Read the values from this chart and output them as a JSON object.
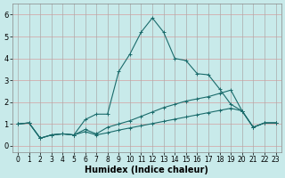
{
  "title": "",
  "xlabel": "Humidex (Indice chaleur)",
  "background_color": "#c8eaea",
  "grid_color_h": "#d4a0a0",
  "grid_color_v": "#aaaaaa",
  "line_color": "#1a6b6b",
  "xlim": [
    -0.5,
    23.5
  ],
  "ylim": [
    -0.3,
    6.5
  ],
  "xticks": [
    0,
    1,
    2,
    3,
    4,
    5,
    6,
    7,
    8,
    9,
    10,
    11,
    12,
    13,
    14,
    15,
    16,
    17,
    18,
    19,
    20,
    21,
    22,
    23
  ],
  "yticks": [
    0,
    1,
    2,
    3,
    4,
    5,
    6
  ],
  "series1": [
    [
      0,
      1.0
    ],
    [
      1,
      1.05
    ],
    [
      2,
      0.35
    ],
    [
      3,
      0.5
    ],
    [
      4,
      0.55
    ],
    [
      5,
      0.5
    ],
    [
      6,
      1.2
    ],
    [
      7,
      1.45
    ],
    [
      8,
      1.45
    ],
    [
      9,
      3.4
    ],
    [
      10,
      4.2
    ],
    [
      11,
      5.2
    ],
    [
      12,
      5.85
    ],
    [
      13,
      5.2
    ],
    [
      14,
      4.0
    ],
    [
      15,
      3.9
    ],
    [
      16,
      3.3
    ],
    [
      17,
      3.25
    ],
    [
      18,
      2.6
    ],
    [
      19,
      1.9
    ],
    [
      20,
      1.6
    ],
    [
      21,
      0.85
    ],
    [
      22,
      1.05
    ],
    [
      23,
      1.05
    ]
  ],
  "series2": [
    [
      0,
      1.0
    ],
    [
      1,
      1.05
    ],
    [
      5,
      0.5
    ],
    [
      6,
      0.75
    ],
    [
      7,
      0.55
    ],
    [
      8,
      0.85
    ],
    [
      19,
      2.55
    ],
    [
      20,
      1.6
    ],
    [
      21,
      0.85
    ],
    [
      22,
      1.05
    ],
    [
      23,
      1.05
    ]
  ],
  "series2_full": [
    [
      0,
      1.0
    ],
    [
      1,
      1.05
    ],
    [
      2,
      0.35
    ],
    [
      3,
      0.5
    ],
    [
      4,
      0.55
    ],
    [
      5,
      0.5
    ],
    [
      6,
      0.75
    ],
    [
      7,
      0.55
    ],
    [
      8,
      0.85
    ],
    [
      9,
      1.0
    ],
    [
      10,
      1.15
    ],
    [
      11,
      1.35
    ],
    [
      12,
      1.55
    ],
    [
      13,
      1.75
    ],
    [
      14,
      1.9
    ],
    [
      15,
      2.05
    ],
    [
      16,
      2.15
    ],
    [
      17,
      2.25
    ],
    [
      18,
      2.4
    ],
    [
      19,
      2.55
    ],
    [
      20,
      1.6
    ],
    [
      21,
      0.85
    ],
    [
      22,
      1.05
    ],
    [
      23,
      1.05
    ]
  ],
  "series3_full": [
    [
      0,
      1.0
    ],
    [
      1,
      1.05
    ],
    [
      2,
      0.35
    ],
    [
      3,
      0.5
    ],
    [
      4,
      0.55
    ],
    [
      5,
      0.5
    ],
    [
      6,
      0.65
    ],
    [
      7,
      0.5
    ],
    [
      8,
      0.6
    ],
    [
      9,
      0.72
    ],
    [
      10,
      0.82
    ],
    [
      11,
      0.92
    ],
    [
      12,
      1.02
    ],
    [
      13,
      1.12
    ],
    [
      14,
      1.22
    ],
    [
      15,
      1.32
    ],
    [
      16,
      1.42
    ],
    [
      17,
      1.52
    ],
    [
      18,
      1.62
    ],
    [
      19,
      1.72
    ],
    [
      20,
      1.6
    ],
    [
      21,
      0.85
    ],
    [
      22,
      1.05
    ],
    [
      23,
      1.05
    ]
  ]
}
